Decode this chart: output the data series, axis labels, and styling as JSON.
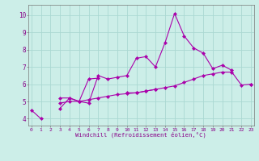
{
  "xlabel": "Windchill (Refroidissement éolien,°C)",
  "bg_color": "#cceee8",
  "grid_color": "#aad8d2",
  "line_color": "#aa00aa",
  "x": [
    0,
    1,
    2,
    3,
    4,
    5,
    6,
    7,
    8,
    9,
    10,
    11,
    12,
    13,
    14,
    15,
    16,
    17,
    18,
    19,
    20,
    21,
    22,
    23
  ],
  "line1": [
    4.5,
    4.0,
    null,
    4.6,
    5.2,
    5.0,
    4.9,
    6.5,
    6.3,
    6.4,
    6.5,
    7.5,
    7.6,
    7.0,
    8.4,
    10.1,
    8.8,
    8.1,
    7.8,
    6.9,
    7.1,
    6.8,
    null,
    6.0
  ],
  "line2": [
    null,
    null,
    null,
    5.2,
    5.2,
    5.0,
    6.3,
    6.35,
    null,
    null,
    5.5,
    5.5,
    5.6,
    5.7,
    null,
    null,
    null,
    null,
    null,
    null,
    null,
    null,
    null,
    null
  ],
  "line3": [
    null,
    null,
    null,
    4.9,
    5.0,
    5.0,
    5.1,
    5.2,
    5.3,
    5.4,
    5.45,
    5.5,
    5.6,
    5.7,
    5.8,
    5.9,
    6.1,
    6.3,
    6.5,
    6.6,
    6.7,
    6.7,
    5.95,
    6.0
  ],
  "ylim": [
    3.6,
    10.6
  ],
  "yticks": [
    4,
    5,
    6,
    7,
    8,
    9,
    10
  ],
  "xticks": [
    0,
    1,
    2,
    3,
    4,
    5,
    6,
    7,
    8,
    9,
    10,
    11,
    12,
    13,
    14,
    15,
    16,
    17,
    18,
    19,
    20,
    21,
    22,
    23
  ],
  "xlim": [
    -0.3,
    23.3
  ]
}
